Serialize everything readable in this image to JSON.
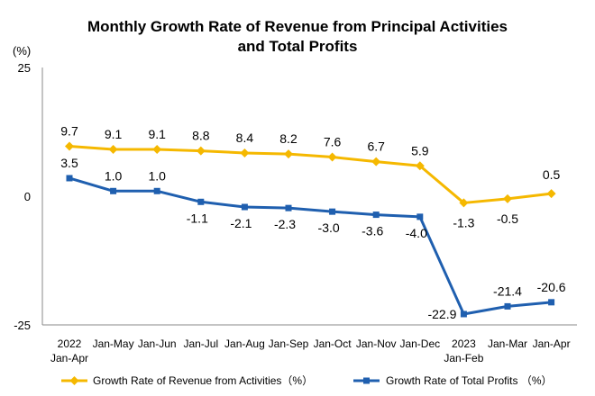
{
  "chart_data": {
    "type": "line",
    "title_lines": [
      "Monthly Growth Rate of Revenue from Principal Activities",
      "and Total Profits"
    ],
    "unit_label": "(%)",
    "ylim": [
      -25,
      25
    ],
    "yticks": [
      25,
      0,
      -25
    ],
    "grid": false,
    "legend_position": "bottom",
    "categories": [
      [
        "2022",
        "Jan-Apr"
      ],
      [
        "Jan-May"
      ],
      [
        "Jan-Jun"
      ],
      [
        "Jan-Jul"
      ],
      [
        "Jan-Aug"
      ],
      [
        "Jan-Sep"
      ],
      [
        "Jan-Oct"
      ],
      [
        "Jan-Nov"
      ],
      [
        "Jan-Dec"
      ],
      [
        "2023",
        "Jan-Feb"
      ],
      [
        "Jan-Mar"
      ],
      [
        "Jan-Apr"
      ]
    ],
    "series": [
      {
        "name": "Growth Rate of Revenue from Activities（%）",
        "color": "#F5B800",
        "marker": "diamond",
        "values": [
          9.7,
          9.1,
          9.1,
          8.8,
          8.4,
          8.2,
          7.6,
          6.7,
          5.9,
          -1.3,
          -0.5,
          0.5
        ],
        "labels": [
          "9.7",
          "9.1",
          "9.1",
          "8.8",
          "8.4",
          "8.2",
          "7.6",
          "6.7",
          "5.9",
          "-1.3",
          "-0.5",
          "0.5"
        ]
      },
      {
        "name": "Growth Rate of Total Profits （%）",
        "color": "#1F5FAF",
        "marker": "square",
        "values": [
          3.5,
          1.0,
          1.0,
          -1.1,
          -2.1,
          -2.3,
          -3.0,
          -3.6,
          -4.0,
          -22.9,
          -21.4,
          -20.6
        ],
        "labels": [
          "3.5",
          "1.0",
          "1.0",
          "-1.1",
          "-2.1",
          "-2.3",
          "-3.0",
          "-3.6",
          "-4.0",
          "-22.9",
          "-21.4",
          "-20.6"
        ]
      }
    ]
  }
}
